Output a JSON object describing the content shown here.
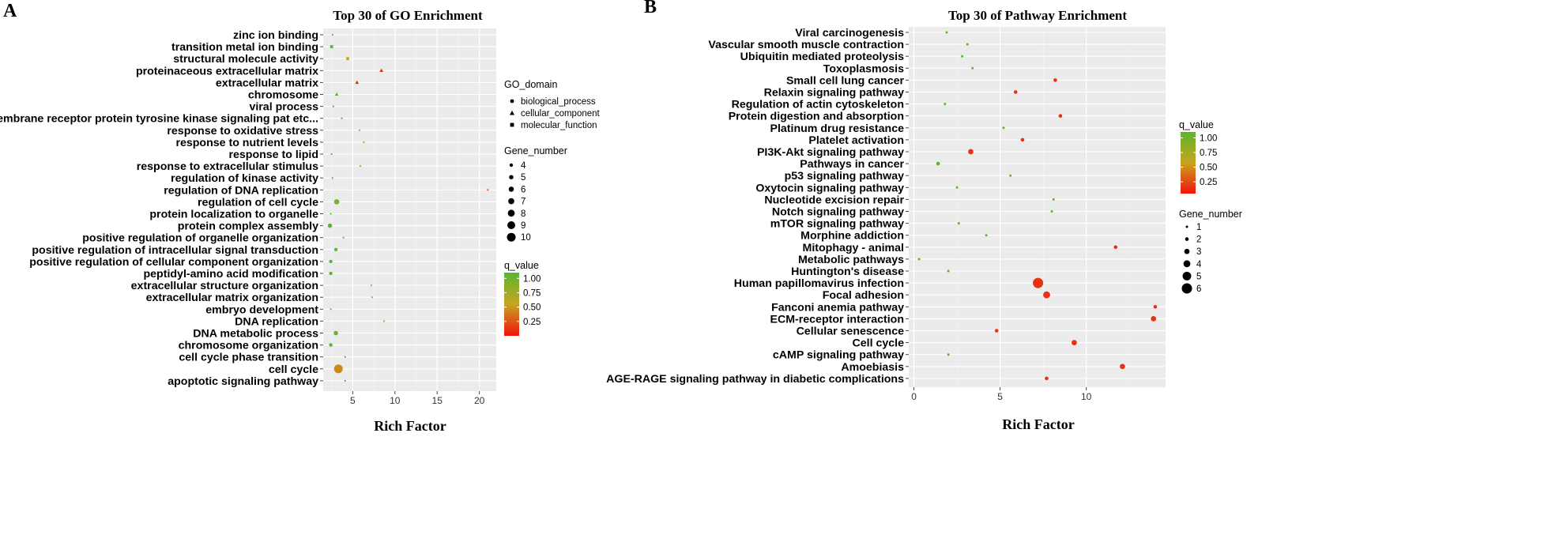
{
  "chart_data": [
    {
      "type": "scatter",
      "panel_label": "A",
      "title": "Top 30 of GO Enrichment",
      "xlabel": "Rich Factor",
      "xlim": [
        1.5,
        22
      ],
      "xticks": [
        5,
        10,
        15,
        20
      ],
      "grid": true,
      "legend_position": "right",
      "shape_legend": {
        "title": "GO_domain",
        "items": [
          {
            "label": "biological_process",
            "shape": "circle"
          },
          {
            "label": "cellular_component",
            "shape": "triangle"
          },
          {
            "label": "molecular_function",
            "shape": "square"
          }
        ]
      },
      "size_legend": {
        "title": "Gene_number",
        "values": [
          4,
          5,
          6,
          7,
          8,
          9,
          10
        ]
      },
      "color_legend": {
        "title": "q_value",
        "ticks": [
          "1.00",
          "0.75",
          "0.50",
          "0.25"
        ],
        "range": [
          0,
          1.1
        ]
      },
      "points": [
        {
          "term": "zinc ion binding",
          "x": 2.6,
          "genes": 2,
          "q": 1.0,
          "domain": "molecular_function"
        },
        {
          "term": "transition metal ion binding",
          "x": 2.5,
          "genes": 4,
          "q": 1.0,
          "domain": "molecular_function"
        },
        {
          "term": "structural molecule activity",
          "x": 4.4,
          "genes": 4,
          "q": 0.5,
          "domain": "molecular_function"
        },
        {
          "term": "proteinaceous extracellular matrix",
          "x": 8.4,
          "genes": 4,
          "q": 0.08,
          "domain": "cellular_component"
        },
        {
          "term": "extracellular matrix",
          "x": 5.5,
          "genes": 4,
          "q": 0.08,
          "domain": "cellular_component"
        },
        {
          "term": "chromosome",
          "x": 3.1,
          "genes": 4,
          "q": 0.95,
          "domain": "cellular_component"
        },
        {
          "term": "viral process",
          "x": 2.7,
          "genes": 2,
          "q": 1.0,
          "domain": "biological_process"
        },
        {
          "term": "transmembrane receptor protein tyrosine kinase signaling pat etc...",
          "x": 3.7,
          "genes": 2,
          "q": 1.0,
          "domain": "biological_process"
        },
        {
          "term": "response to oxidative stress",
          "x": 5.8,
          "genes": 2,
          "q": 0.6,
          "domain": "biological_process"
        },
        {
          "term": "response to nutrient levels",
          "x": 6.3,
          "genes": 2,
          "q": 0.5,
          "domain": "biological_process"
        },
        {
          "term": "response to lipid",
          "x": 2.5,
          "genes": 2,
          "q": 1.0,
          "domain": "biological_process"
        },
        {
          "term": "response to extracellular stimulus",
          "x": 5.9,
          "genes": 2,
          "q": 0.6,
          "domain": "biological_process"
        },
        {
          "term": "regulation of kinase activity",
          "x": 2.6,
          "genes": 2,
          "q": 1.0,
          "domain": "biological_process"
        },
        {
          "term": "regulation of DNA replication",
          "x": 21.0,
          "genes": 2,
          "q": 0.2,
          "domain": "biological_process"
        },
        {
          "term": "regulation of cell cycle",
          "x": 3.1,
          "genes": 6,
          "q": 0.9,
          "domain": "biological_process"
        },
        {
          "term": "protein localization to organelle",
          "x": 2.4,
          "genes": 2,
          "q": 1.0,
          "domain": "biological_process"
        },
        {
          "term": "protein complex assembly",
          "x": 2.3,
          "genes": 5,
          "q": 1.0,
          "domain": "biological_process"
        },
        {
          "term": "positive regulation of organelle organization",
          "x": 3.9,
          "genes": 2,
          "q": 1.0,
          "domain": "biological_process"
        },
        {
          "term": "positive regulation of intracellular signal transduction",
          "x": 3.0,
          "genes": 4,
          "q": 1.0,
          "domain": "biological_process"
        },
        {
          "term": "positive regulation of cellular component organization",
          "x": 2.4,
          "genes": 4,
          "q": 1.0,
          "domain": "biological_process"
        },
        {
          "term": "peptidyl-amino acid modification",
          "x": 2.4,
          "genes": 4,
          "q": 1.0,
          "domain": "biological_process"
        },
        {
          "term": "extracellular structure organization",
          "x": 7.2,
          "genes": 2,
          "q": 0.6,
          "domain": "biological_process"
        },
        {
          "term": "extracellular matrix organization",
          "x": 7.3,
          "genes": 2,
          "q": 0.6,
          "domain": "biological_process"
        },
        {
          "term": "embryo development",
          "x": 2.4,
          "genes": 2,
          "q": 1.0,
          "domain": "biological_process"
        },
        {
          "term": "DNA replication",
          "x": 8.7,
          "genes": 2,
          "q": 0.5,
          "domain": "biological_process"
        },
        {
          "term": "DNA metabolic process",
          "x": 3.0,
          "genes": 5,
          "q": 0.95,
          "domain": "biological_process"
        },
        {
          "term": "chromosome organization",
          "x": 2.4,
          "genes": 4,
          "q": 1.0,
          "domain": "biological_process"
        },
        {
          "term": "cell cycle phase transition",
          "x": 4.1,
          "genes": 2,
          "q": 1.0,
          "domain": "biological_process"
        },
        {
          "term": "cell cycle",
          "x": 3.3,
          "genes": 10,
          "q": 0.4,
          "domain": "biological_process"
        },
        {
          "term": "apoptotic signaling pathway",
          "x": 4.1,
          "genes": 2,
          "q": 1.0,
          "domain": "biological_process"
        }
      ]
    },
    {
      "type": "scatter",
      "panel_label": "B",
      "title": "Top 30 of Pathway Enrichment",
      "xlabel": "Rich Factor",
      "xlim": [
        -0.3,
        14.6
      ],
      "xticks": [
        0,
        5,
        10
      ],
      "grid": true,
      "legend_position": "right",
      "color_legend": {
        "title": "q_value",
        "ticks": [
          "1.00",
          "0.75",
          "0.50",
          "0.25"
        ],
        "range": [
          0.05,
          1.1
        ]
      },
      "size_legend": {
        "title": "Gene_number",
        "values": [
          1,
          2,
          3,
          4,
          5,
          6
        ]
      },
      "points": [
        {
          "term": "Viral carcinogenesis",
          "x": 1.9,
          "genes": 1,
          "q": 1.0
        },
        {
          "term": "Vascular smooth muscle contraction",
          "x": 3.1,
          "genes": 1,
          "q": 1.0
        },
        {
          "term": "Ubiquitin mediated proteolysis",
          "x": 2.8,
          "genes": 1,
          "q": 1.0
        },
        {
          "term": "Toxoplasmosis",
          "x": 3.4,
          "genes": 1,
          "q": 1.0
        },
        {
          "term": "Small cell lung cancer",
          "x": 8.2,
          "genes": 2,
          "q": 0.1
        },
        {
          "term": "Relaxin signaling pathway",
          "x": 5.9,
          "genes": 2,
          "q": 0.1
        },
        {
          "term": "Regulation of actin cytoskeleton",
          "x": 1.8,
          "genes": 1,
          "q": 1.0
        },
        {
          "term": "Protein digestion and absorption",
          "x": 8.5,
          "genes": 2,
          "q": 0.1
        },
        {
          "term": "Platinum drug resistance",
          "x": 5.2,
          "genes": 1,
          "q": 1.0
        },
        {
          "term": "Platelet activation",
          "x": 6.3,
          "genes": 2,
          "q": 0.1
        },
        {
          "term": "PI3K-Akt signaling pathway",
          "x": 3.3,
          "genes": 3,
          "q": 0.1
        },
        {
          "term": "Pathways in cancer",
          "x": 1.4,
          "genes": 2,
          "q": 1.0
        },
        {
          "term": "p53 signaling pathway",
          "x": 5.6,
          "genes": 1,
          "q": 1.0
        },
        {
          "term": "Oxytocin signaling pathway",
          "x": 2.5,
          "genes": 1,
          "q": 1.0
        },
        {
          "term": "Nucleotide excision repair",
          "x": 8.1,
          "genes": 1,
          "q": 1.0
        },
        {
          "term": "Notch signaling pathway",
          "x": 8.0,
          "genes": 1,
          "q": 1.0
        },
        {
          "term": "mTOR signaling pathway",
          "x": 2.6,
          "genes": 1,
          "q": 1.0
        },
        {
          "term": "Morphine addiction",
          "x": 4.2,
          "genes": 1,
          "q": 1.0
        },
        {
          "term": "Mitophagy - animal",
          "x": 11.7,
          "genes": 2,
          "q": 0.1
        },
        {
          "term": "Metabolic pathways",
          "x": 0.3,
          "genes": 1,
          "q": 1.0
        },
        {
          "term": "Huntington's disease",
          "x": 2.0,
          "genes": 1,
          "q": 1.0
        },
        {
          "term": "Human papillomavirus infection",
          "x": 7.2,
          "genes": 6,
          "q": 0.1
        },
        {
          "term": "Focal adhesion",
          "x": 7.7,
          "genes": 4,
          "q": 0.1
        },
        {
          "term": "Fanconi anemia pathway",
          "x": 14.0,
          "genes": 2,
          "q": 0.1
        },
        {
          "term": "ECM-receptor interaction",
          "x": 13.9,
          "genes": 3,
          "q": 0.1
        },
        {
          "term": "Cellular senescence",
          "x": 4.8,
          "genes": 2,
          "q": 0.1
        },
        {
          "term": "Cell cycle",
          "x": 9.3,
          "genes": 3,
          "q": 0.1
        },
        {
          "term": "cAMP signaling pathway",
          "x": 2.0,
          "genes": 1,
          "q": 1.0
        },
        {
          "term": "Amoebiasis",
          "x": 12.1,
          "genes": 3,
          "q": 0.1
        },
        {
          "term": "AGE-RAGE signaling pathway in diabetic complications",
          "x": 7.7,
          "genes": 2,
          "q": 0.1
        }
      ]
    }
  ]
}
